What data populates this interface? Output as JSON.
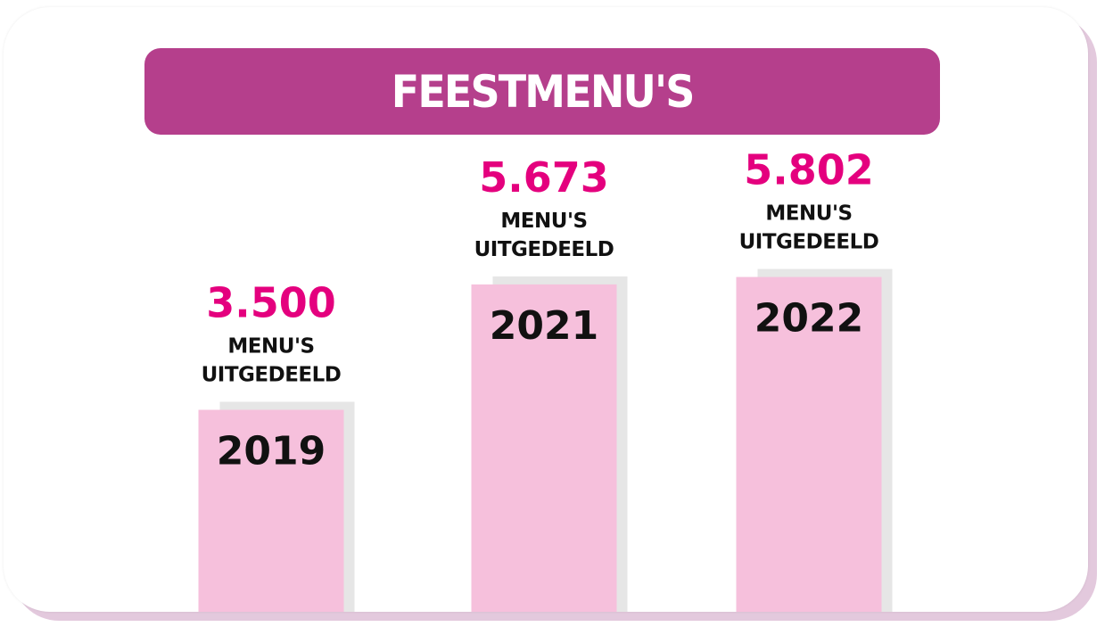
{
  "colors": {
    "title_bg": "#b53f8c",
    "bar": "#f6c0dc",
    "bar_shadow": "#e6e6e6",
    "value_text": "#e4007e",
    "label_text": "#111111"
  },
  "chart_data": {
    "type": "bar",
    "title": "FEESTMENU'S",
    "categories": [
      "2019",
      "2021",
      "2022"
    ],
    "values": [
      3500,
      5673,
      5802
    ],
    "data_labels": [
      "3.500",
      "5.673",
      "5.802"
    ],
    "value_caption_line1": "MENU'S",
    "value_caption_line2": "UITGEDEELD",
    "ylim": [
      0,
      8500
    ],
    "grid": false,
    "legend": "none"
  }
}
